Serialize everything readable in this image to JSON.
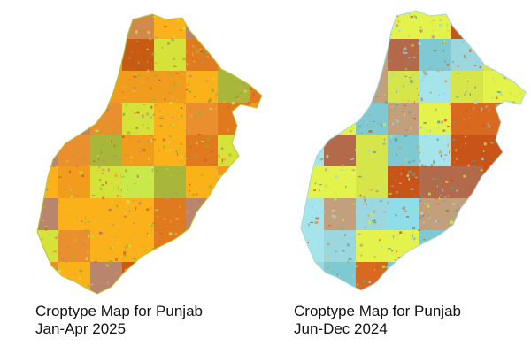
{
  "maps": [
    {
      "id": "left",
      "caption_line1": "Croptype Map for Punjab",
      "caption_line2": "Jan-Apr 2025",
      "palette": [
        "#c75b12",
        "#e07a1f",
        "#f29c1d",
        "#fbb21a",
        "#d4e23a",
        "#c9e84a",
        "#a8b63a",
        "#b9866d",
        "#d28a4c",
        "#ea8f2e"
      ],
      "speckle_colors": [
        "#c7e24a",
        "#8bb436",
        "#d15c1c",
        "#f3a23a",
        "#b88a78"
      ]
    },
    {
      "id": "right",
      "caption_line1": "Croptype Map for Punjab",
      "caption_line2": "Jun-Dec 2024",
      "palette": [
        "#c95417",
        "#d8691f",
        "#8fdde8",
        "#a6e4ec",
        "#7fc9d3",
        "#c2a07e",
        "#d6e64a",
        "#e3f34c",
        "#b36a4a",
        "#9bd7df"
      ],
      "speckle_colors": [
        "#8fdde8",
        "#d15c1c",
        "#c9e84a",
        "#5b9e8a",
        "#c2a07e"
      ]
    }
  ]
}
